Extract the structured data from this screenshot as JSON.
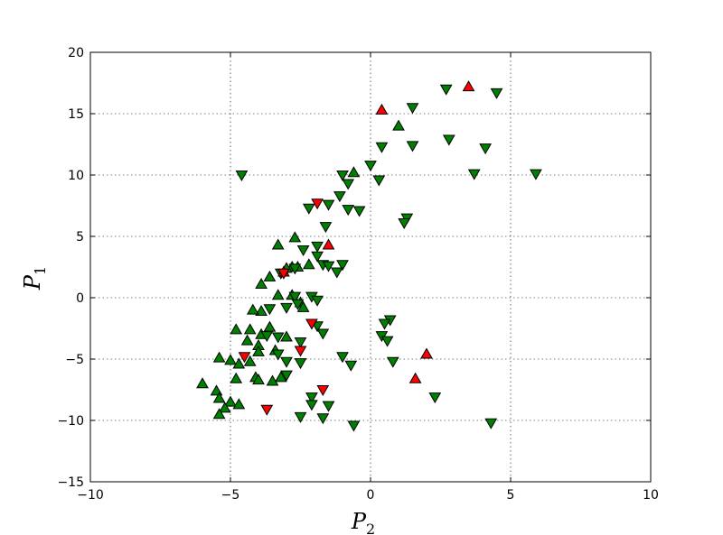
{
  "chart_data": {
    "type": "scatter",
    "xlabel": {
      "symbol": "P",
      "sub": "2"
    },
    "ylabel": {
      "symbol": "P",
      "sub": "1"
    },
    "xlim": [
      -10,
      10
    ],
    "ylim": [
      -15,
      20
    ],
    "xticks": [
      -10,
      -5,
      0,
      5,
      10
    ],
    "yticks": [
      -15,
      -10,
      -5,
      0,
      5,
      10,
      15,
      20
    ],
    "xtick_labels": [
      "−10",
      "−5",
      "0",
      "5",
      "10"
    ],
    "ytick_labels": [
      "−15",
      "−10",
      "−5",
      "0",
      "5",
      "10",
      "15",
      "20"
    ],
    "grid": true,
    "series": [
      {
        "marker": "triangle-up",
        "color": "#008000",
        "points": [
          [
            1.0,
            14.0
          ],
          [
            -0.6,
            10.2
          ],
          [
            -2.7,
            4.9
          ],
          [
            -3.3,
            4.3
          ],
          [
            -2.8,
            2.5
          ],
          [
            -2.6,
            2.5
          ],
          [
            -2.2,
            2.7
          ],
          [
            -3.6,
            1.7
          ],
          [
            -3.9,
            1.1
          ],
          [
            -3.0,
            2.4
          ],
          [
            -2.8,
            0.2
          ],
          [
            -3.3,
            0.2
          ],
          [
            -2.5,
            -0.4
          ],
          [
            -2.4,
            -0.8
          ],
          [
            -3.9,
            -1.1
          ],
          [
            -4.2,
            -1.0
          ],
          [
            -3.6,
            -2.4
          ],
          [
            -4.8,
            -2.6
          ],
          [
            -4.3,
            -2.6
          ],
          [
            -3.9,
            -3.0
          ],
          [
            -3.0,
            -3.2
          ],
          [
            -4.4,
            -3.5
          ],
          [
            -4.0,
            -3.9
          ],
          [
            -4.0,
            -4.4
          ],
          [
            -3.4,
            -4.3
          ],
          [
            -5.4,
            -4.9
          ],
          [
            -5.0,
            -5.1
          ],
          [
            -4.3,
            -5.2
          ],
          [
            -4.7,
            -5.4
          ],
          [
            -3.2,
            -6.5
          ],
          [
            -4.1,
            -6.5
          ],
          [
            -4.8,
            -6.6
          ],
          [
            -4.0,
            -6.7
          ],
          [
            -3.5,
            -6.8
          ],
          [
            -6.0,
            -7.0
          ],
          [
            -5.5,
            -7.6
          ],
          [
            -5.4,
            -8.2
          ],
          [
            -5.0,
            -8.5
          ],
          [
            -4.7,
            -8.7
          ],
          [
            -5.2,
            -9.0
          ],
          [
            -5.4,
            -9.5
          ]
        ]
      },
      {
        "marker": "triangle-down",
        "color": "#008000",
        "points": [
          [
            2.7,
            17.0
          ],
          [
            4.5,
            16.7
          ],
          [
            1.5,
            15.5
          ],
          [
            2.8,
            12.9
          ],
          [
            0.4,
            12.3
          ],
          [
            1.5,
            12.4
          ],
          [
            4.1,
            12.2
          ],
          [
            0.0,
            10.8
          ],
          [
            3.7,
            10.1
          ],
          [
            5.9,
            10.1
          ],
          [
            -4.6,
            10.0
          ],
          [
            -1.0,
            10.0
          ],
          [
            0.3,
            9.6
          ],
          [
            -0.8,
            9.3
          ],
          [
            -1.1,
            8.3
          ],
          [
            -1.5,
            7.6
          ],
          [
            -2.2,
            7.3
          ],
          [
            -0.8,
            7.2
          ],
          [
            -0.4,
            7.1
          ],
          [
            1.3,
            6.5
          ],
          [
            1.2,
            6.1
          ],
          [
            -1.6,
            5.8
          ],
          [
            -1.9,
            4.2
          ],
          [
            -2.4,
            3.9
          ],
          [
            -1.9,
            3.4
          ],
          [
            -1.0,
            2.7
          ],
          [
            -1.7,
            2.7
          ],
          [
            -1.5,
            2.6
          ],
          [
            -2.7,
            2.4
          ],
          [
            -1.2,
            2.1
          ],
          [
            -3.2,
            2.0
          ],
          [
            -2.7,
            0.1
          ],
          [
            -2.1,
            0.1
          ],
          [
            -1.9,
            -0.2
          ],
          [
            -2.6,
            -0.5
          ],
          [
            -3.0,
            -0.8
          ],
          [
            -3.6,
            -0.9
          ],
          [
            0.7,
            -1.8
          ],
          [
            0.5,
            -2.1
          ],
          [
            -1.9,
            -2.3
          ],
          [
            -1.7,
            -2.9
          ],
          [
            0.4,
            -3.1
          ],
          [
            -3.7,
            -3.1
          ],
          [
            -3.3,
            -3.2
          ],
          [
            0.6,
            -3.5
          ],
          [
            -2.5,
            -3.6
          ],
          [
            -3.3,
            -4.6
          ],
          [
            -1.0,
            -4.8
          ],
          [
            -2.5,
            -5.3
          ],
          [
            0.8,
            -5.2
          ],
          [
            -0.7,
            -5.5
          ],
          [
            -3.0,
            -5.2
          ],
          [
            -3.0,
            -6.3
          ],
          [
            -2.1,
            -8.1
          ],
          [
            2.3,
            -8.1
          ],
          [
            -2.1,
            -8.7
          ],
          [
            -1.5,
            -8.8
          ],
          [
            -2.5,
            -9.7
          ],
          [
            -1.7,
            -9.8
          ],
          [
            -0.6,
            -10.4
          ],
          [
            4.3,
            -10.2
          ]
        ]
      },
      {
        "marker": "triangle-up",
        "color": "#ff0000",
        "points": [
          [
            3.5,
            17.2
          ],
          [
            0.4,
            15.3
          ],
          [
            -1.5,
            4.3
          ],
          [
            -3.1,
            2.1
          ],
          [
            2.0,
            -4.6
          ],
          [
            1.6,
            -6.6
          ]
        ]
      },
      {
        "marker": "triangle-down",
        "color": "#ff0000",
        "points": [
          [
            -1.9,
            7.7
          ],
          [
            -3.1,
            2.0
          ],
          [
            -2.1,
            -2.1
          ],
          [
            -2.5,
            -4.3
          ],
          [
            -4.5,
            -4.8
          ],
          [
            -1.7,
            -7.5
          ],
          [
            -3.7,
            -9.1
          ]
        ]
      }
    ]
  }
}
